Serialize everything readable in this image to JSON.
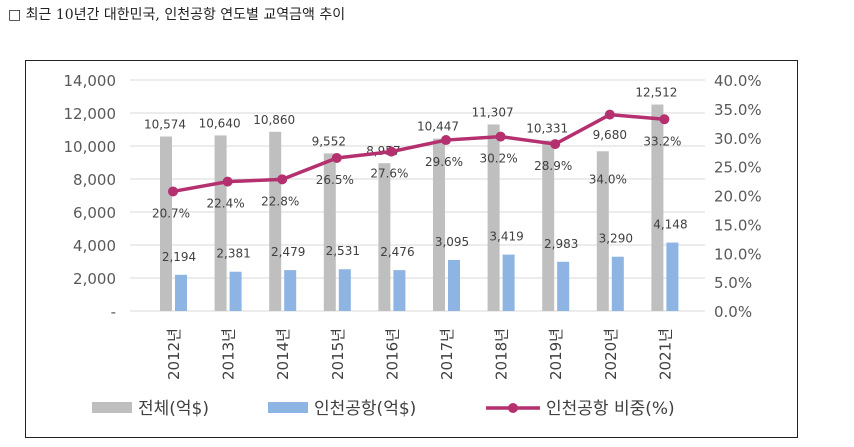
{
  "title": "□ 최근 10년간 대한민국, 인천공항 연도별 교역금액 추이",
  "chart_data": {
    "type": "bar+line",
    "categories": [
      "2012년",
      "2013년",
      "2014년",
      "2015년",
      "2016년",
      "2017년",
      "2018년",
      "2019년",
      "2020년",
      "2021년"
    ],
    "series": [
      {
        "name": "전체(억$)",
        "type": "bar",
        "axis": "left",
        "color": "#bfbfbf",
        "values": [
          10574,
          10640,
          10860,
          9552,
          8957,
          10447,
          11307,
          10331,
          9680,
          12512
        ],
        "labels": [
          "10,574",
          "10,640",
          "10,860",
          "9,552",
          "8,957",
          "10,447",
          "11,307",
          "10,331",
          "9,680",
          "12,512"
        ]
      },
      {
        "name": "인천공항(억$)",
        "type": "bar",
        "axis": "left",
        "color": "#8db4e2",
        "values": [
          2194,
          2381,
          2479,
          2531,
          2476,
          3095,
          3419,
          2983,
          3290,
          4148
        ],
        "labels": [
          "2,194",
          "2,381",
          "2,479",
          "2,531",
          "2,476",
          "3,095",
          "3,419",
          "2,983",
          "3,290",
          "4,148"
        ]
      },
      {
        "name": "인천공항 비중(%)",
        "type": "line",
        "axis": "right",
        "color": "#b5306f",
        "values": [
          20.7,
          22.4,
          22.8,
          26.5,
          27.6,
          29.6,
          30.2,
          28.9,
          34.0,
          33.2
        ],
        "labels": [
          "20.7%",
          "22.4%",
          "22.8%",
          "26.5%",
          "27.6%",
          "29.6%",
          "30.2%",
          "28.9%",
          "34.0%",
          "33.2%"
        ]
      }
    ],
    "left_axis": {
      "ylim": [
        0,
        14000
      ],
      "ticks": [
        "-",
        "2,000",
        "4,000",
        "6,000",
        "8,000",
        "10,000",
        "12,000",
        "14,000"
      ]
    },
    "right_axis": {
      "ylim": [
        0,
        40
      ],
      "ticks": [
        "0.0%",
        "5.0%",
        "10.0%",
        "15.0%",
        "20.0%",
        "25.0%",
        "30.0%",
        "35.0%",
        "40.0%"
      ]
    },
    "grid": true,
    "legend": "bottom"
  }
}
